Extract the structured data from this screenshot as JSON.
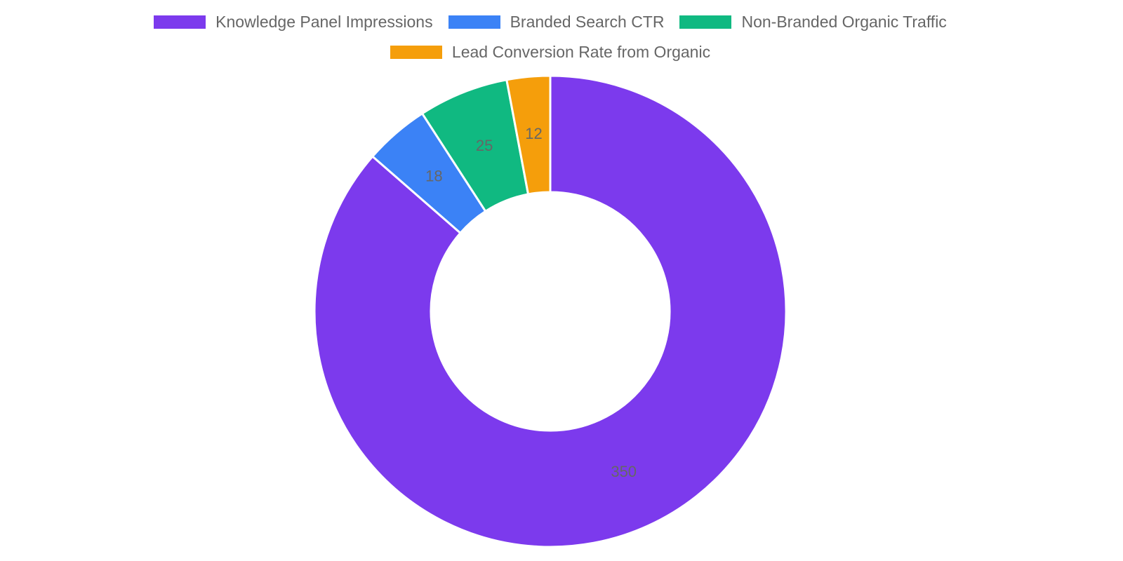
{
  "chart_data": {
    "type": "pie",
    "variant": "doughnut",
    "title": "",
    "categories": [
      "Knowledge Panel Impressions",
      "Branded Search CTR",
      "Non-Branded Organic Traffic",
      "Lead Conversion Rate from Organic"
    ],
    "values": [
      350,
      18,
      25,
      12
    ],
    "colors": [
      "#7c3aed",
      "#3b82f6",
      "#10b981",
      "#f59e0b"
    ],
    "legend_position": "top",
    "data_labels": [
      "350",
      "18",
      "25",
      "12"
    ]
  },
  "legend": {
    "items": [
      {
        "label": "Knowledge Panel Impressions",
        "color": "#7c3aed"
      },
      {
        "label": "Branded Search CTR",
        "color": "#3b82f6"
      },
      {
        "label": "Non-Branded Organic Traffic",
        "color": "#10b981"
      },
      {
        "label": "Lead Conversion Rate from Organic",
        "color": "#f59e0b"
      }
    ]
  }
}
